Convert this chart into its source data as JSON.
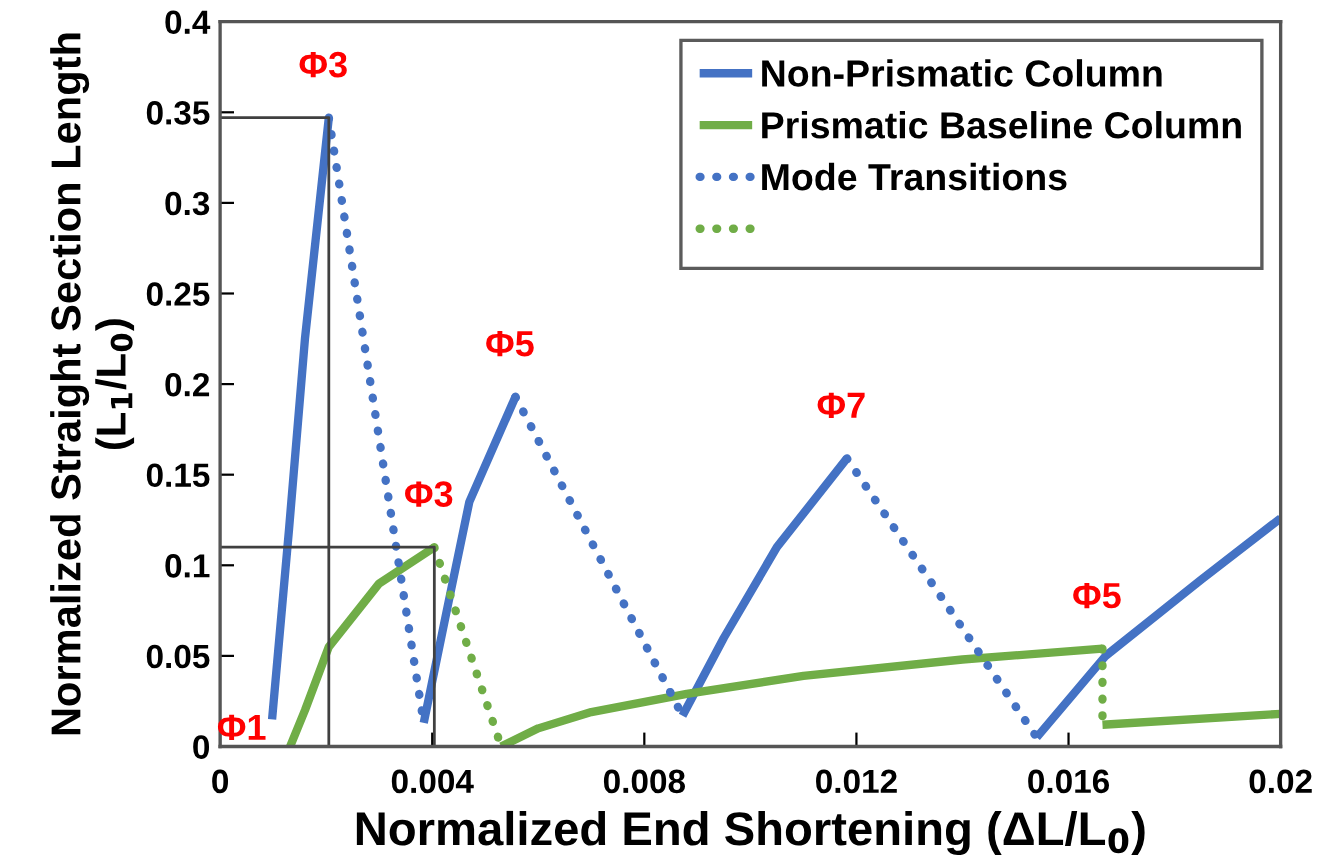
{
  "chart_data": {
    "type": "line",
    "xlabel": "Normalized End Shortening (ΔL/L$_{0}$)",
    "ylabel": "Normalized Straight Section Length\n(L$_{1}$/L$_{0}$)",
    "xlim": [
      0,
      0.02
    ],
    "xticks": [
      0,
      0.004,
      0.008,
      0.012,
      0.016,
      0.02
    ],
    "ylim": [
      0,
      0.4
    ],
    "yticks": [
      0,
      0.05,
      0.1,
      0.15,
      0.2,
      0.25,
      0.3,
      0.35,
      0.4
    ],
    "grid": false,
    "legend": "top right",
    "marker": "none",
    "series": [
      {
        "name": "Non-Prismatic Column",
        "color": "#4472c4",
        "line_style": "solid",
        "x": [
          0.00098,
          0.0013,
          0.0016,
          0.00205
        ],
        "values": [
          0.015,
          0.12,
          0.225,
          0.347
        ]
      },
      {
        "color": "#4472c4",
        "line_style": "solid",
        "x": [
          0.00384,
          0.00431,
          0.0047,
          0.00557
        ],
        "values": [
          0.013,
          0.08,
          0.135,
          0.193
        ]
      },
      {
        "color": "#4472c4",
        "line_style": "solid",
        "x": [
          0.00872,
          0.0095,
          0.0105,
          0.01182
        ],
        "values": [
          0.017,
          0.06,
          0.11,
          0.159
        ]
      },
      {
        "color": "#4472c4",
        "line_style": "solid",
        "x": [
          0.0154,
          0.0167,
          0.0185,
          0.02
        ],
        "values": [
          0.005,
          0.05,
          0.092,
          0.126
        ]
      },
      {
        "name": "Prismatic Baseline Column",
        "color": "#70ad47",
        "line_style": "solid",
        "x": [
          0.00132,
          0.0016,
          0.00205,
          0.003,
          0.00404
        ],
        "values": [
          0,
          0.02,
          0.055,
          0.09,
          0.11
        ]
      },
      {
        "color": "#70ad47",
        "line_style": "solid",
        "x": [
          0.0053,
          0.006,
          0.007,
          0.0088,
          0.011,
          0.014,
          0.01664
        ],
        "values": [
          0,
          0.01,
          0.019,
          0.029,
          0.039,
          0.048,
          0.054
        ]
      },
      {
        "color": "#70ad47",
        "line_style": "solid",
        "x": [
          0.01664,
          0.02
        ],
        "values": [
          0.012,
          0.018
        ]
      },
      {
        "name": "Mode Transitions",
        "color": "#4472c4",
        "line_style": "dotted",
        "x": [
          0.00205,
          0.00384
        ],
        "values": [
          0.347,
          0.013
        ]
      },
      {
        "color": "#4472c4",
        "line_style": "dotted",
        "x": [
          0.00557,
          0.00872
        ],
        "values": [
          0.193,
          0.017
        ]
      },
      {
        "color": "#4472c4",
        "line_style": "dotted",
        "x": [
          0.01182,
          0.0154
        ],
        "values": [
          0.159,
          0.005
        ]
      },
      {
        "color": "#70ad47",
        "line_style": "dotted",
        "x": [
          0.00404,
          0.0053
        ],
        "values": [
          0.11,
          0
        ]
      },
      {
        "color": "#70ad47",
        "line_style": "dotted",
        "x": [
          0.01664,
          0.01664
        ],
        "values": [
          0.054,
          0.012
        ]
      },
      {
        "color": "#404040",
        "line_style": "solid",
        "x": [
          0,
          0.00205,
          0.00205
        ],
        "values": [
          0.347,
          0.347,
          0
        ]
      },
      {
        "color": "#404040",
        "line_style": "solid",
        "x": [
          0,
          0.00404,
          0.00404
        ],
        "values": [
          0.11,
          0.11,
          0
        ]
      }
    ],
    "annotations": [
      {
        "text": "Φ3",
        "x": 0.00205,
        "y": 0.347
      },
      {
        "text": "Φ1",
        "x": 0.00098,
        "y": 0.015
      },
      {
        "text": "Φ3",
        "x": 0.00404,
        "y": 0.11
      },
      {
        "text": "Φ5",
        "x": 0.00557,
        "y": 0.193
      },
      {
        "text": "Φ7",
        "x": 0.01182,
        "y": 0.159
      },
      {
        "text": "Φ5",
        "x": 0.01664,
        "y": 0.054
      }
    ]
  }
}
